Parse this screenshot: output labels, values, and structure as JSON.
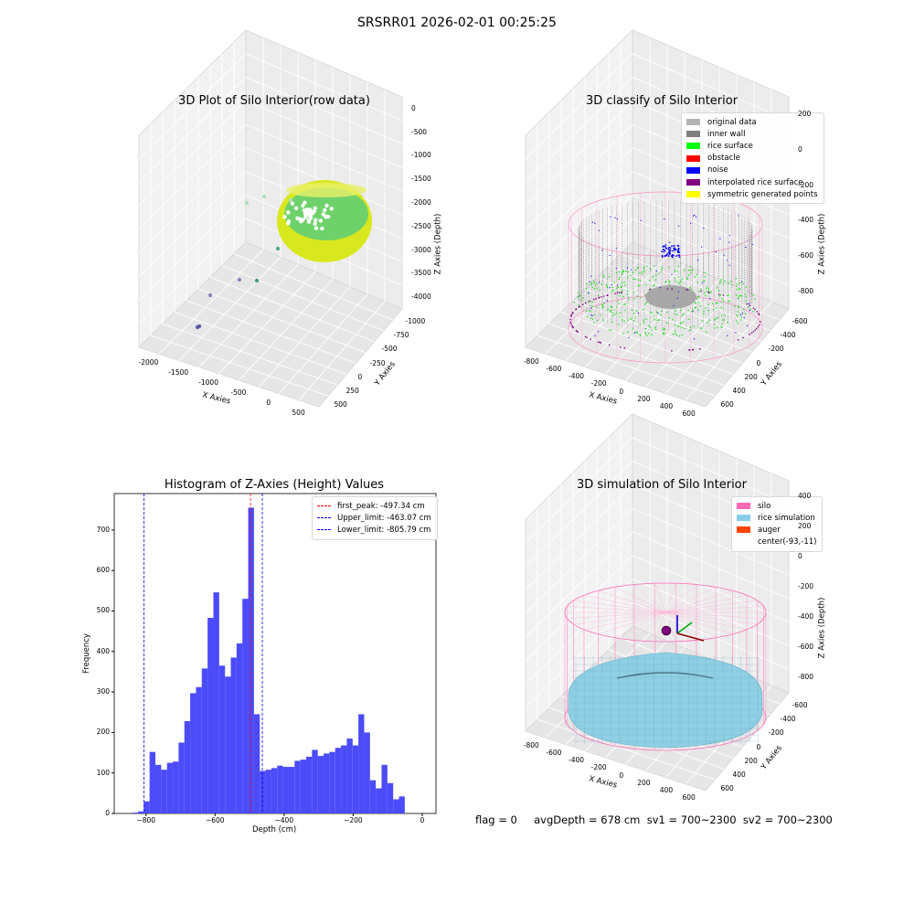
{
  "suptitle": "SRSRR01 2026-02-01 00:25:25",
  "footer": "flag = 0     avgDepth = 678 cm  sv1 = 700~2300  sv2 = 700~2300",
  "chart_data": [
    {
      "type": "scatter3d",
      "title": "3D Plot of Silo Interior(row data)",
      "xlabel": "X Axies",
      "ylabel": "Y Axies",
      "zlabel": "Z Axies (Depth)",
      "xticks": [
        "-2000",
        "-1500",
        "-1000",
        "-500",
        "0",
        "500"
      ],
      "yticks": [
        "-1000",
        "-750",
        "-500",
        "-250",
        "0",
        "250",
        "500"
      ],
      "zticks": [
        "0",
        "-500",
        "-1000",
        "-1500",
        "-2000",
        "-2500",
        "-3000",
        "-3500",
        "-4000"
      ],
      "colors": {
        "surface_low": "#d9e81e",
        "surface_high": "#6fd16a",
        "outlier": "#3b8fa0"
      }
    },
    {
      "type": "scatter3d",
      "title": "3D classify of Silo Interior",
      "xlabel": "X Axies",
      "ylabel": "Y Axies",
      "zlabel": "Z Axies (Depth)",
      "xticks": [
        "-800",
        "-600",
        "-400",
        "-200",
        "0",
        "200",
        "400",
        "600"
      ],
      "yticks": [
        "-600",
        "-400",
        "-200",
        "0",
        "200",
        "400",
        "600"
      ],
      "zticks": [
        "200",
        "0",
        "-200",
        "-400",
        "-600",
        "-800"
      ],
      "legend": [
        {
          "label": "original data",
          "color": "#b4b4b4"
        },
        {
          "label": "inner wall",
          "color": "#808080"
        },
        {
          "label": "rice surface",
          "color": "#00ff00"
        },
        {
          "label": "obstacle",
          "color": "#ff0000"
        },
        {
          "label": "noise",
          "color": "#0000ff"
        },
        {
          "label": "interpolated rice surface",
          "color": "#800080"
        },
        {
          "label": "symmetric generated points",
          "color": "#ffff00"
        }
      ]
    },
    {
      "type": "bar",
      "title": "Histogram of Z-Axies (Height) Values",
      "xlabel": "Depth (cm)",
      "ylabel": "Frequency",
      "xlim": [
        -892,
        40
      ],
      "ylim": [
        0,
        790
      ],
      "xticks": [
        -800,
        -600,
        -400,
        -200,
        0
      ],
      "yticks": [
        0,
        100,
        200,
        300,
        400,
        500,
        600,
        700
      ],
      "bar_color": "#4b4bfa",
      "bin_width": 16.8,
      "bin_start": -840,
      "values": [
        2,
        5,
        30,
        152,
        120,
        108,
        125,
        128,
        175,
        228,
        297,
        312,
        358,
        483,
        546,
        365,
        338,
        385,
        420,
        530,
        755,
        245,
        105,
        108,
        112,
        118,
        115,
        115,
        130,
        133,
        140,
        157,
        142,
        148,
        152,
        162,
        168,
        185,
        168,
        245,
        200,
        82,
        62,
        120,
        75,
        35,
        42
      ],
      "vlines": [
        {
          "label": "first_peak: -497.34 cm",
          "x": -497.34,
          "color": "#ff0000"
        },
        {
          "label": "Upper_limit: -463.07 cm",
          "x": -463.07,
          "color": "#0000ff"
        },
        {
          "label": "Lower_limit: -805.79 cm",
          "x": -805.79,
          "color": "#0000ff"
        }
      ]
    },
    {
      "type": "surface3d",
      "title": "3D simulation of Silo Interior",
      "xlabel": "X Axies",
      "ylabel": "Y Axies",
      "zlabel": "Z Axies (Depth)",
      "xticks": [
        "-800",
        "-600",
        "-400",
        "-200",
        "0",
        "200",
        "400",
        "600"
      ],
      "yticks": [
        "-600",
        "-400",
        "-200",
        "0",
        "200",
        "400",
        "600"
      ],
      "zticks": [
        "400",
        "200",
        "0",
        "-200",
        "-400",
        "-600",
        "-800"
      ],
      "legend": [
        {
          "label": "silo",
          "color": "#ff69b4"
        },
        {
          "label": "rice simulation",
          "color": "#87ceeb"
        },
        {
          "label": "auger",
          "color": "#ff4500"
        },
        {
          "label": "center(-93,-11)",
          "color": ""
        }
      ]
    }
  ]
}
